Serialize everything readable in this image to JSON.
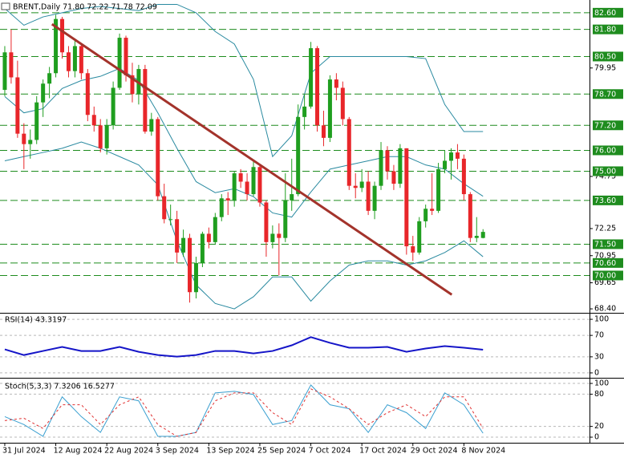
{
  "chart_data": [
    {
      "type": "candlestick",
      "title": "BRENT,Daily  71.80 72.22 71.78 72.09",
      "categories": [
        "31 Jul 2024",
        null,
        null,
        null,
        null,
        null,
        null,
        null,
        "12 Aug 2024",
        null,
        null,
        null,
        null,
        null,
        null,
        null,
        "22 Aug 2024",
        null,
        null,
        null,
        null,
        null,
        null,
        null,
        "3 Sep 2024",
        null,
        null,
        null,
        null,
        null,
        null,
        null,
        "13 Sep 2024",
        null,
        null,
        null,
        null,
        null,
        null,
        null,
        "25 Sep 2024",
        null,
        null,
        null,
        null,
        null,
        null,
        null,
        "7 Oct 2024",
        null,
        null,
        null,
        null,
        null,
        null,
        null,
        "17 Oct 2024",
        null,
        null,
        null,
        null,
        null,
        null,
        null,
        "29 Oct 2024",
        null,
        null,
        null,
        null,
        null,
        null,
        null,
        "8 Nov 2024",
        null,
        null,
        null
      ],
      "open": [
        78.9,
        80.7,
        79.5,
        76.8,
        76.3,
        76.5,
        78.3,
        79.2,
        79.7,
        82.3,
        80.7,
        79.8,
        81.0,
        79.7,
        77.7,
        77.2,
        76.1,
        77.2,
        79.0,
        81.4,
        79.6,
        78.7,
        79.9,
        76.9,
        77.5,
        73.8,
        72.7,
        72.7,
        71.1,
        71.8,
        69.2,
        70.6,
        72.0,
        71.6,
        72.8,
        73.7,
        73.6,
        74.9,
        74.5,
        73.9,
        75.2,
        73.5,
        71.6,
        72.0,
        71.8,
        73.6,
        73.9,
        77.6,
        78.1,
        80.9,
        77.2,
        76.6,
        79.4,
        79.0,
        77.5,
        74.3,
        74.2,
        74.5,
        73.1,
        74.3,
        76.0,
        75.0,
        74.4,
        76.1,
        71.4,
        71.1,
        72.6,
        73.2,
        73.1,
        75.1,
        75.5,
        75.9,
        75.6,
        73.9,
        71.8,
        71.8
      ],
      "high": [
        81.0,
        81.8,
        80.3,
        77.3,
        77.0,
        78.6,
        79.4,
        80.0,
        82.5,
        82.4,
        81.0,
        81.3,
        81.1,
        79.9,
        78.1,
        77.5,
        77.5,
        79.3,
        81.6,
        81.5,
        80.2,
        80.1,
        80.1,
        77.8,
        77.6,
        74.4,
        73.4,
        73.1,
        72.2,
        72.0,
        70.9,
        72.1,
        72.3,
        73.0,
        73.9,
        74.0,
        75.0,
        75.1,
        74.9,
        75.5,
        75.3,
        73.6,
        72.4,
        72.5,
        74.9,
        75.6,
        78.2,
        78.7,
        81.2,
        81.0,
        77.9,
        79.6,
        79.7,
        79.3,
        77.6,
        74.9,
        75.1,
        75.0,
        74.5,
        76.4,
        76.2,
        75.3,
        76.3,
        76.1,
        71.9,
        72.8,
        73.4,
        74.9,
        75.4,
        76.0,
        76.1,
        76.3,
        75.8,
        74.0,
        72.8,
        72.22
      ],
      "low": [
        78.6,
        79.2,
        76.6,
        75.1,
        75.6,
        76.3,
        77.6,
        78.5,
        79.5,
        80.4,
        79.5,
        79.5,
        79.4,
        77.4,
        76.9,
        75.9,
        75.8,
        77.0,
        78.9,
        79.3,
        78.3,
        78.2,
        76.8,
        76.7,
        73.6,
        72.5,
        72.4,
        70.6,
        70.9,
        68.7,
        68.9,
        70.4,
        71.3,
        71.5,
        72.6,
        72.9,
        73.3,
        74.2,
        73.6,
        73.8,
        73.3,
        70.9,
        71.3,
        70.0,
        71.6,
        73.1,
        73.8,
        77.0,
        78.0,
        76.9,
        76.2,
        76.4,
        78.4,
        77.2,
        74.1,
        73.7,
        74.0,
        72.9,
        72.7,
        74.1,
        74.6,
        74.1,
        74.2,
        71.0,
        70.7,
        71.0,
        72.3,
        72.9,
        73.0,
        74.9,
        74.6,
        75.1,
        73.6,
        71.6,
        71.6,
        71.78
      ],
      "close": [
        80.7,
        79.5,
        76.8,
        76.3,
        76.5,
        78.3,
        79.2,
        79.7,
        82.3,
        80.7,
        79.8,
        81.0,
        79.7,
        77.7,
        77.2,
        76.1,
        77.2,
        79.0,
        81.4,
        79.6,
        78.7,
        79.9,
        76.9,
        77.5,
        73.8,
        72.7,
        72.7,
        71.1,
        71.8,
        69.2,
        70.6,
        72.0,
        71.6,
        72.8,
        73.7,
        73.6,
        74.9,
        74.5,
        73.9,
        75.2,
        73.5,
        71.6,
        72.0,
        71.8,
        73.6,
        73.9,
        77.6,
        78.1,
        80.9,
        77.2,
        76.6,
        79.4,
        79.0,
        77.5,
        74.3,
        74.2,
        74.5,
        73.1,
        74.3,
        76.0,
        75.0,
        74.4,
        76.1,
        71.4,
        71.1,
        72.6,
        73.2,
        73.1,
        75.1,
        75.5,
        75.9,
        75.6,
        73.9,
        71.8,
        71.9,
        72.09
      ],
      "up_color": "#1f9e1f",
      "down_color": "#e8262a",
      "xlim": [
        -0.75,
        91.7
      ],
      "ylim": [
        68.21,
        83.21
      ],
      "yticks": [
        79.95,
        74.75,
        72.25,
        70.95,
        69.65,
        {
          "value": 68.4,
          "label": "68.40"
        }
      ],
      "levels": [
        {
          "value": 82.6,
          "label": "82.60"
        },
        {
          "value": 81.8,
          "label": "81.80"
        },
        {
          "value": 80.5,
          "label": "80.50"
        },
        {
          "value": 78.7,
          "label": "78.70"
        },
        {
          "value": 77.2,
          "label": "77.20"
        },
        {
          "value": 76,
          "label": "76.00"
        },
        {
          "value": 75,
          "label": "75.00"
        },
        {
          "value": 73.6,
          "label": "73.60"
        },
        {
          "value": 71.5,
          "label": "71.50"
        },
        {
          "value": 70.6,
          "label": "70.60"
        },
        {
          "value": 70,
          "label": "70.00"
        }
      ],
      "level_color": "#1e8c1e",
      "bands": {
        "color": "#2a8aa0",
        "x": [
          0,
          3,
          6,
          9,
          12,
          15,
          18,
          21,
          24,
          27,
          30,
          33,
          36,
          39,
          42,
          45,
          48,
          51,
          54,
          57,
          60,
          63,
          66,
          69,
          72,
          75
        ],
        "upper": [
          82.8,
          82.0,
          82.4,
          82.6,
          82.8,
          82.9,
          82.8,
          82.7,
          83.0,
          83.0,
          82.6,
          81.7,
          81.1,
          79.4,
          75.7,
          76.7,
          79.7,
          80.5,
          80.5,
          80.5,
          80.5,
          80.5,
          80.4,
          78.2,
          76.9,
          76.9
        ],
        "middle": [
          78.58,
          77.8,
          78.0,
          78.97,
          79.35,
          79.55,
          79.93,
          79.35,
          77.8,
          76.1,
          74.5,
          73.97,
          74.16,
          73.78,
          73.0,
          72.8,
          74.0,
          75.1,
          75.3,
          75.5,
          75.7,
          75.7,
          75.3,
          75.1,
          74.4,
          73.8
        ],
        "lower": [
          75.5,
          75.7,
          75.9,
          76.1,
          76.4,
          76.1,
          75.7,
          75.3,
          74.35,
          71.66,
          69.55,
          68.66,
          68.4,
          68.98,
          69.93,
          69.93,
          68.77,
          69.74,
          70.5,
          70.7,
          70.7,
          70.5,
          70.7,
          71.1,
          71.66,
          70.9
        ]
      },
      "trendline": {
        "color": "#a3332b",
        "x": [
          7.4,
          70.1
        ],
        "values": [
          82.05,
          69.08
        ]
      }
    },
    {
      "type": "line",
      "title": "RSI(14) 43.3197",
      "x": [
        0,
        3,
        6,
        9,
        12,
        15,
        18,
        21,
        24,
        27,
        30,
        33,
        36,
        39,
        42,
        45,
        48,
        51,
        54,
        57,
        60,
        63,
        66,
        69,
        72,
        75
      ],
      "series": [
        {
          "color": "#1515c8",
          "values": [
            43.9,
            33.3,
            40.9,
            48.5,
            40.9,
            40.9,
            48.5,
            39.4,
            33.3,
            30.3,
            33.3,
            40.9,
            40.9,
            36.4,
            40.9,
            51.5,
            66.7,
            56.1,
            47,
            47,
            48.5,
            39.4,
            45.5,
            50,
            47,
            43.3
          ]
        }
      ],
      "xlim": [
        -0.75,
        91.7
      ],
      "ylim": [
        -9.1,
        110.6
      ],
      "yticks": [
        100,
        70,
        30,
        0
      ]
    },
    {
      "type": "line",
      "title": "Stoch(5,3,3) 7.3206 16.5277",
      "x": [
        0,
        3,
        6,
        9,
        12,
        15,
        18,
        21,
        24,
        27,
        30,
        33,
        36,
        39,
        42,
        45,
        48,
        51,
        54,
        57,
        60,
        63,
        66,
        69,
        72,
        75
      ],
      "series": [
        {
          "color": "#3a9fd0",
          "values": [
            38.2,
            23.5,
            1.5,
            75,
            38.2,
            8.8,
            75,
            67.6,
            1.5,
            1.5,
            8.8,
            82.4,
            85.3,
            79.4,
            23.5,
            30.9,
            97.1,
            60.3,
            52.9,
            8.8,
            60.3,
            45.6,
            16.2,
            82.4,
            60.3,
            7.3
          ]
        },
        {
          "color": "#e03030",
          "dashed": true,
          "values": [
            30.9,
            35.3,
            16.2,
            60.3,
            60.3,
            23.5,
            60.3,
            75,
            23.5,
            1.5,
            8.8,
            67.6,
            82.4,
            82.4,
            45.6,
            23.5,
            89.7,
            75,
            52.9,
            23.5,
            45.6,
            60.3,
            38.2,
            75,
            75,
            16.5
          ]
        }
      ],
      "xlim": [
        -0.75,
        91.7
      ],
      "ylim": [
        -10.4,
        109
      ],
      "yticks": [
        100,
        80,
        20,
        0
      ]
    }
  ]
}
